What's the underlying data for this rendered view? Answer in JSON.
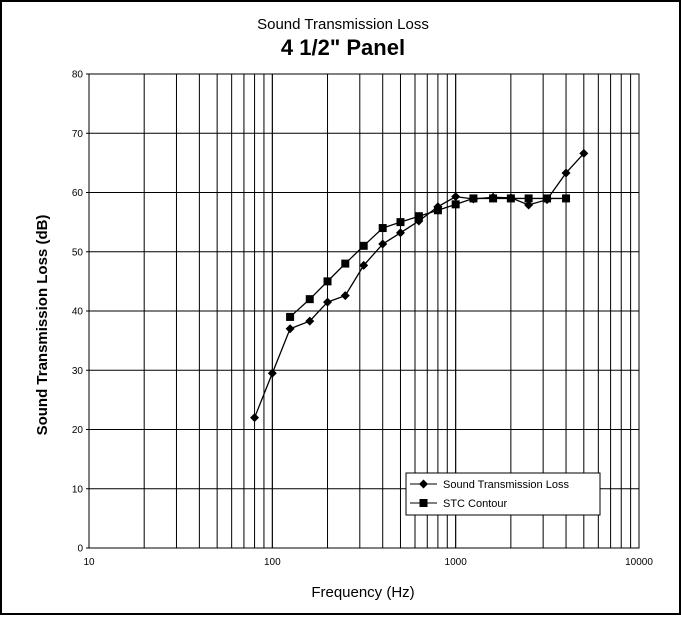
{
  "chart_data": {
    "type": "line",
    "title": "Sound Transmission Loss",
    "subtitle": "4 1/2\" Panel",
    "xlabel": "Frequency (Hz)",
    "ylabel": "Sound Transmission Loss (dB)",
    "xscale": "log",
    "xlim": [
      10,
      10000
    ],
    "ylim": [
      0,
      80
    ],
    "xticks": [
      10,
      100,
      1000,
      10000
    ],
    "xtick_labels": [
      "10",
      "100",
      "1000",
      "10000"
    ],
    "yticks": [
      0,
      10,
      20,
      30,
      40,
      50,
      60,
      70,
      80
    ],
    "ytick_labels": [
      "0",
      "10",
      "20",
      "30",
      "40",
      "50",
      "60",
      "70",
      "80"
    ],
    "grid": true,
    "legend_position": "bottom-right",
    "series": [
      {
        "name": "Sound Transmission Loss",
        "marker": "diamond",
        "color": "#000000",
        "x": [
          80,
          100,
          125,
          160,
          200,
          250,
          315,
          400,
          500,
          630,
          800,
          1000,
          1250,
          1600,
          2000,
          2500,
          3150,
          4000,
          5000
        ],
        "y": [
          22,
          29.5,
          37,
          38.3,
          41.5,
          42.6,
          47.7,
          51.3,
          53.2,
          55.2,
          57.6,
          59.3,
          58.9,
          59.2,
          59.1,
          57.9,
          58.8,
          63.3,
          66.6
        ]
      },
      {
        "name": "STC Contour",
        "marker": "square",
        "color": "#000000",
        "x": [
          125,
          160,
          200,
          250,
          315,
          400,
          500,
          630,
          800,
          1000,
          1250,
          1600,
          2000,
          2500,
          3150,
          4000
        ],
        "y": [
          39,
          42,
          45,
          48,
          51,
          54,
          55,
          56,
          57,
          58,
          59,
          59,
          59,
          59,
          59,
          59
        ]
      }
    ]
  }
}
